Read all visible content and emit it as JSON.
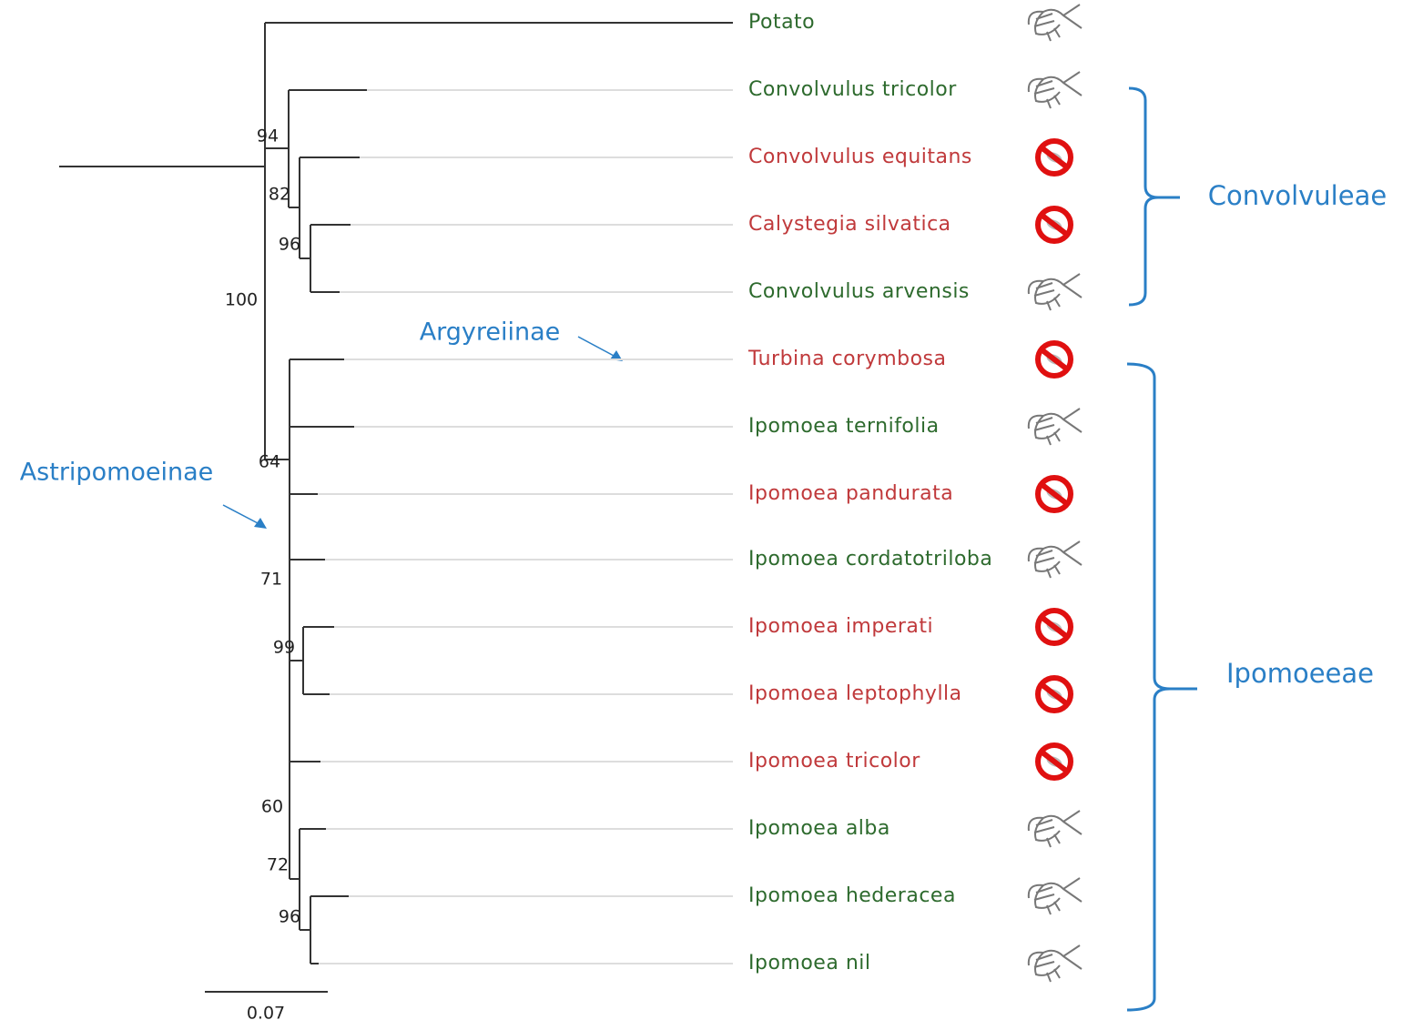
{
  "taxa": [
    {
      "name": "Potato",
      "color": "#2d6a2d",
      "marker": "insect"
    },
    {
      "name": "Convolvulus tricolor",
      "color": "#2d6a2d",
      "marker": "insect"
    },
    {
      "name": "Convolvulus equitans",
      "color": "#c0393b",
      "marker": "blocked"
    },
    {
      "name": "Calystegia silvatica",
      "color": "#c0393b",
      "marker": "blocked"
    },
    {
      "name": "Convolvulus arvensis",
      "color": "#2d6a2d",
      "marker": "insect"
    },
    {
      "name": "Turbina corymbosa",
      "color": "#c0393b",
      "marker": "blocked"
    },
    {
      "name": "Ipomoea ternifolia",
      "color": "#2d6a2d",
      "marker": "insect"
    },
    {
      "name": "Ipomoea pandurata",
      "color": "#c0393b",
      "marker": "blocked"
    },
    {
      "name": "Ipomoea cordatotriloba",
      "color": "#2d6a2d",
      "marker": "insect"
    },
    {
      "name": "Ipomoea imperati",
      "color": "#c0393b",
      "marker": "blocked"
    },
    {
      "name": "Ipomoea leptophylla",
      "color": "#c0393b",
      "marker": "blocked"
    },
    {
      "name": "Ipomoea tricolor",
      "color": "#c0393b",
      "marker": "blocked"
    },
    {
      "name": "Ipomoea alba",
      "color": "#2d6a2d",
      "marker": "insect"
    },
    {
      "name": "Ipomoea hederacea",
      "color": "#2d6a2d",
      "marker": "insect"
    },
    {
      "name": "Ipomoea nil",
      "color": "#2d6a2d",
      "marker": "insect"
    }
  ],
  "bootstrap": [
    94,
    82,
    96,
    100,
    64,
    71,
    99,
    60,
    72,
    96
  ],
  "groups": [
    "Convolvuleae",
    "Ipomoeeae"
  ],
  "subgroups": [
    "Argyreiinae",
    "Astripomoeinae"
  ],
  "scale": 0.07
}
